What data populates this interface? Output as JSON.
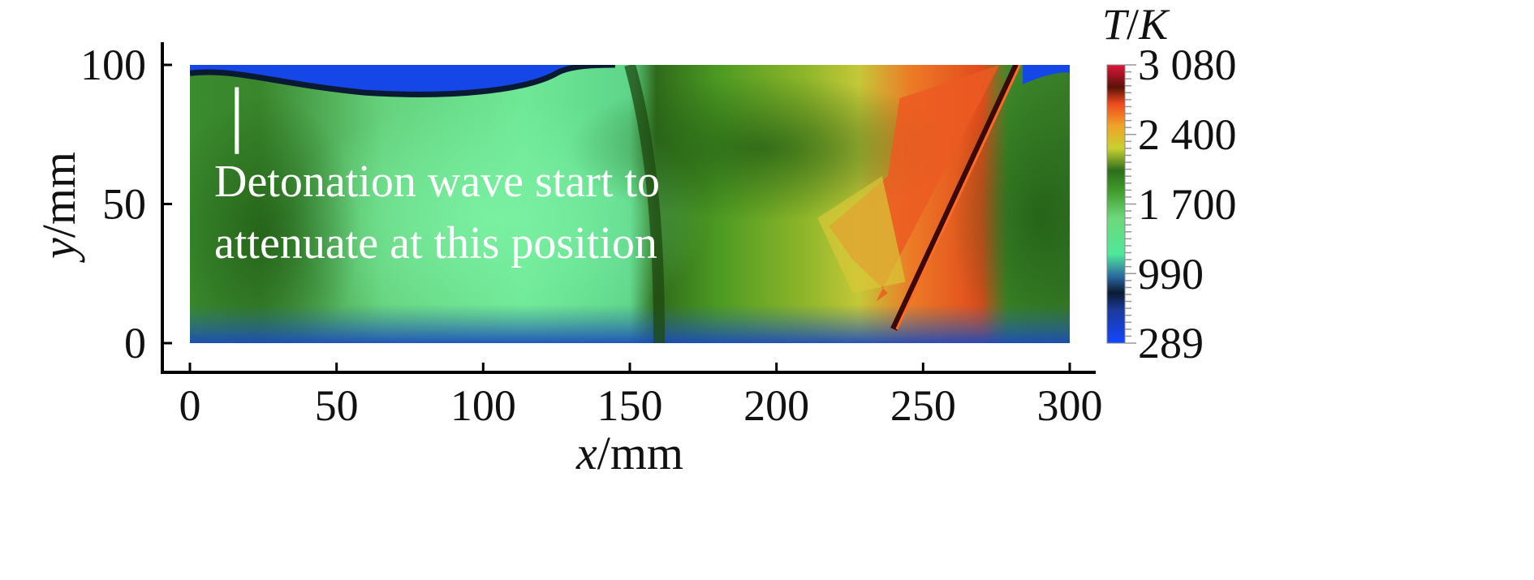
{
  "chart_data": {
    "type": "heatmap",
    "title": "",
    "xlabel": {
      "var": "x",
      "unit": "/mm"
    },
    "ylabel": {
      "var": "y",
      "unit": "/mm"
    },
    "xlim": [
      0,
      300
    ],
    "ylim": [
      0,
      100
    ],
    "xticks": [
      0,
      50,
      100,
      150,
      200,
      250,
      300
    ],
    "yticks": [
      0,
      50,
      100
    ],
    "grid": false,
    "colorbar": {
      "title_var": "T",
      "title_sep": "/",
      "title_unit": "K",
      "title_italic": true,
      "labels": [
        "3 080",
        "2 400",
        "1 700",
        "990",
        "289"
      ],
      "values": [
        3080,
        2400,
        1700,
        990,
        289
      ],
      "colors": {
        "low": "#1446ff",
        "cold_dark": "#0b1a33",
        "cool": "#4fe89a",
        "mid": "#3f9a2a",
        "warm": "#d8d02c",
        "hot": "#f05a1e",
        "hottest": "#e0143c"
      }
    },
    "annotation": {
      "lines": [
        "Detonation wave start to",
        "attenuate at this position"
      ],
      "x": 16,
      "y_from": 92,
      "y_to": 68
    },
    "features": {
      "detonation_front_top_x": 282,
      "detonation_front_bottom_x": 240,
      "detonation_front_top_y": 100,
      "detonation_front_bottom_y": 5,
      "contact_surface_x": 163
    }
  }
}
